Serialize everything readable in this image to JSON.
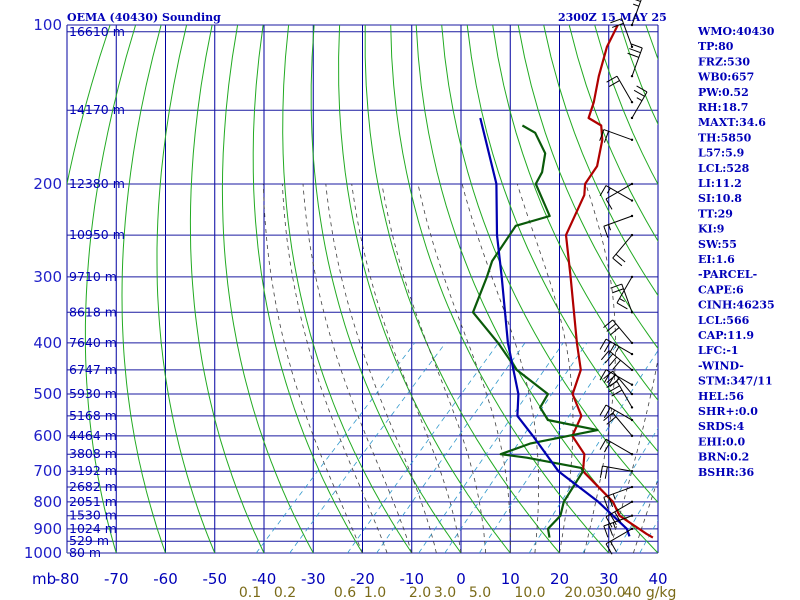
{
  "title_left": "OEMA (40430) Sounding",
  "title_right": "2300Z 15 MAY 25",
  "colors": {
    "grid": "#1a1aa0",
    "isotherm": "#0000a0",
    "dry_adiabat": "#22aa22",
    "moist_adiabat": "#404040",
    "mixing_ratio": "#3399cc",
    "temperature": "#b00000",
    "dewpoint": "#0a5a0a",
    "parcel": "#0000b0",
    "wind": "#000000",
    "text": "#0000b8",
    "mixing_label": "#7a6a18"
  },
  "chart_data": {
    "type": "line",
    "x_unit_label": "mb",
    "xlim": [
      -80,
      40
    ],
    "ylim": [
      1000,
      100
    ],
    "y_scale": "log",
    "grid": true,
    "isobars": [
      100,
      200,
      300,
      400,
      500,
      600,
      700,
      800,
      900,
      1000
    ],
    "isotherms": [
      -80,
      -70,
      -60,
      -50,
      -40,
      -30,
      -20,
      -10,
      0,
      10,
      20,
      30,
      40
    ],
    "height_labels": [
      {
        "p": 103,
        "text": "16610 m"
      },
      {
        "p": 145,
        "text": "14170 m"
      },
      {
        "p": 200,
        "text": "12380 m"
      },
      {
        "p": 250,
        "text": "10950 m"
      },
      {
        "p": 300,
        "text": "9710 m"
      },
      {
        "p": 350,
        "text": "8618 m"
      },
      {
        "p": 400,
        "text": "7640 m"
      },
      {
        "p": 450,
        "text": "6747 m"
      },
      {
        "p": 500,
        "text": "5930 m"
      },
      {
        "p": 550,
        "text": "5168 m"
      },
      {
        "p": 600,
        "text": "4464 m"
      },
      {
        "p": 650,
        "text": "3808 m"
      },
      {
        "p": 700,
        "text": "3192 m"
      },
      {
        "p": 750,
        "text": "2682 m"
      },
      {
        "p": 800,
        "text": "2051 m"
      },
      {
        "p": 850,
        "text": "1530 m"
      },
      {
        "p": 900,
        "text": "1024 m"
      },
      {
        "p": 950,
        "text": "529 m"
      },
      {
        "p": 1000,
        "text": "80 m"
      }
    ],
    "mixing_ratio_labels": [
      "0.1",
      "0.2",
      "0.6",
      "1.0",
      "2.0",
      "3.0",
      "5.0",
      "10.0",
      "20.0",
      "30.0",
      "40 g/kg"
    ],
    "series": [
      {
        "key": "temperature",
        "points": [
          [
            100,
            -70
          ],
          [
            110,
            -68
          ],
          [
            125,
            -64
          ],
          [
            140,
            -60
          ],
          [
            150,
            -58
          ],
          [
            155,
            -54
          ],
          [
            165,
            -51
          ],
          [
            185,
            -47
          ],
          [
            200,
            -46
          ],
          [
            210,
            -44
          ],
          [
            250,
            -40
          ],
          [
            300,
            -31
          ],
          [
            400,
            -17
          ],
          [
            450,
            -11
          ],
          [
            500,
            -8
          ],
          [
            550,
            -2
          ],
          [
            600,
            0
          ],
          [
            650,
            6
          ],
          [
            700,
            9
          ],
          [
            800,
            21
          ],
          [
            850,
            25
          ],
          [
            920,
            34
          ],
          [
            935,
            36
          ]
        ]
      },
      {
        "key": "dewpoint",
        "points": [
          [
            155,
            -70
          ],
          [
            160,
            -66
          ],
          [
            175,
            -60
          ],
          [
            190,
            -57
          ],
          [
            200,
            -56
          ],
          [
            230,
            -47
          ],
          [
            240,
            -52
          ],
          [
            280,
            -50
          ],
          [
            300,
            -48
          ],
          [
            350,
            -44
          ],
          [
            400,
            -33
          ],
          [
            450,
            -24
          ],
          [
            500,
            -13
          ],
          [
            530,
            -12
          ],
          [
            560,
            -8
          ],
          [
            585,
            4
          ],
          [
            620,
            -7
          ],
          [
            650,
            -11
          ],
          [
            660,
            -5
          ],
          [
            690,
            8
          ],
          [
            700,
            9
          ],
          [
            800,
            11
          ],
          [
            850,
            13
          ],
          [
            900,
            13
          ],
          [
            935,
            15
          ]
        ]
      },
      {
        "key": "parcel",
        "points": [
          [
            150,
            -80
          ],
          [
            200,
            -64
          ],
          [
            250,
            -54
          ],
          [
            300,
            -45
          ],
          [
            400,
            -31
          ],
          [
            500,
            -19
          ],
          [
            550,
            -15
          ],
          [
            600,
            -8
          ],
          [
            700,
            4
          ],
          [
            800,
            18
          ],
          [
            900,
            29
          ],
          [
            930,
            31
          ]
        ]
      }
    ]
  },
  "wind_barbs": [
    {
      "p": 100,
      "dir": 20,
      "kt": 25
    },
    {
      "p": 110,
      "dir": 340,
      "kt": 20
    },
    {
      "p": 125,
      "dir": 20,
      "kt": 30
    },
    {
      "p": 140,
      "dir": 330,
      "kt": 20
    },
    {
      "p": 150,
      "dir": 30,
      "kt": 25
    },
    {
      "p": 165,
      "dir": 290,
      "kt": 20
    },
    {
      "p": 200,
      "dir": 240,
      "kt": 10
    },
    {
      "p": 215,
      "dir": 300,
      "kt": 15
    },
    {
      "p": 230,
      "dir": 250,
      "kt": 15
    },
    {
      "p": 250,
      "dir": 220,
      "kt": 20
    },
    {
      "p": 300,
      "dir": 210,
      "kt": 15
    },
    {
      "p": 350,
      "dir": 340,
      "kt": 20
    },
    {
      "p": 400,
      "dir": 320,
      "kt": 30
    },
    {
      "p": 420,
      "dir": 300,
      "kt": 35
    },
    {
      "p": 450,
      "dir": 310,
      "kt": 40
    },
    {
      "p": 480,
      "dir": 300,
      "kt": 35
    },
    {
      "p": 500,
      "dir": 320,
      "kt": 30
    },
    {
      "p": 530,
      "dir": 330,
      "kt": 30
    },
    {
      "p": 560,
      "dir": 300,
      "kt": 25
    },
    {
      "p": 600,
      "dir": 320,
      "kt": 20
    },
    {
      "p": 650,
      "dir": 300,
      "kt": 20
    },
    {
      "p": 700,
      "dir": 280,
      "kt": 20
    },
    {
      "p": 750,
      "dir": 250,
      "kt": 25
    },
    {
      "p": 800,
      "dir": 240,
      "kt": 30
    },
    {
      "p": 850,
      "dir": 250,
      "kt": 25
    },
    {
      "p": 900,
      "dir": 240,
      "kt": 20
    }
  ],
  "indices": [
    "WMO:40430",
    "TP:80",
    "FRZ:530",
    "WB0:657",
    "PW:0.52",
    "RH:18.7",
    "MAXT:34.6",
    "TH:5850",
    "L57:5.9",
    "LCL:528",
    "LI:11.2",
    "SI:10.8",
    "TT:29",
    "KI:9",
    "SW:55",
    "EI:1.6",
    "-PARCEL-",
    "CAPE:6",
    "CINH:46235",
    "LCL:566",
    "CAP:11.9",
    "LFC:-1",
    "-WIND-",
    "STM:347/11",
    "HEL:56",
    "SHR+:0.0",
    "SRDS:4",
    "EHI:0.0",
    "BRN:0.2",
    "BSHR:36"
  ]
}
